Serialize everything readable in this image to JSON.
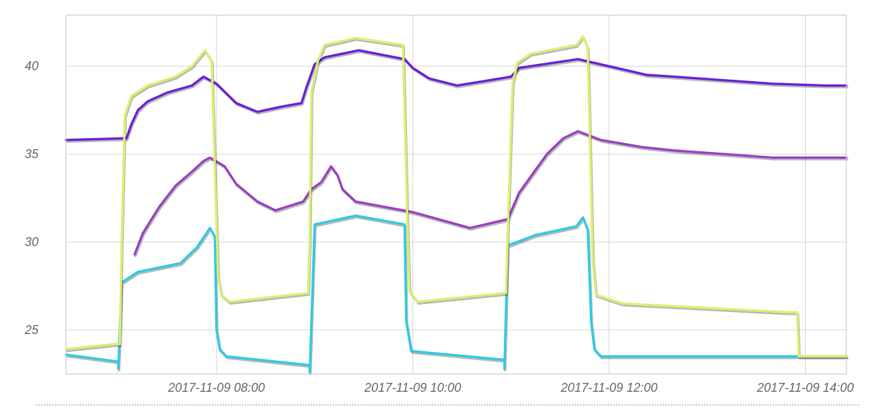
{
  "chart_data": {
    "type": "line",
    "title": "",
    "xlabel": "",
    "ylabel": "",
    "x_range": [
      "2017-11-09 06:28",
      "2017-11-09 14:25"
    ],
    "ylim": [
      22.5,
      42.9
    ],
    "y_ticks": [
      {
        "value": 25,
        "label": "25"
      },
      {
        "value": 30,
        "label": "30"
      },
      {
        "value": 35,
        "label": "35"
      },
      {
        "value": 40,
        "label": "40"
      }
    ],
    "x_ticks": [
      {
        "value": "2017-11-09 08:00",
        "label": "2017-11-09 08:00"
      },
      {
        "value": "2017-11-09 10:00",
        "label": "2017-11-09 10:00"
      },
      {
        "value": "2017-11-09 12:00",
        "label": "2017-11-09 12:00"
      },
      {
        "value": "2017-11-09 14:00",
        "label": "2017-11-09 14:00"
      }
    ],
    "grid": true,
    "legend": "none",
    "series": [
      {
        "color": "#6a1fd8",
        "points": [
          [
            "2017-11-09 06:28",
            35.8
          ],
          [
            "2017-11-09 07:05",
            35.9
          ],
          [
            "2017-11-09 07:08",
            36.7
          ],
          [
            "2017-11-09 07:12",
            37.5
          ],
          [
            "2017-11-09 07:18",
            38.0
          ],
          [
            "2017-11-09 07:30",
            38.5
          ],
          [
            "2017-11-09 07:45",
            38.9
          ],
          [
            "2017-11-09 07:52",
            39.4
          ],
          [
            "2017-11-09 08:00",
            39.0
          ],
          [
            "2017-11-09 08:12",
            37.9
          ],
          [
            "2017-11-09 08:25",
            37.4
          ],
          [
            "2017-11-09 08:40",
            37.7
          ],
          [
            "2017-11-09 08:52",
            37.9
          ],
          [
            "2017-11-09 08:55",
            38.8
          ],
          [
            "2017-11-09 09:00",
            40.1
          ],
          [
            "2017-11-09 09:06",
            40.5
          ],
          [
            "2017-11-09 09:27",
            40.9
          ],
          [
            "2017-11-09 09:55",
            40.4
          ],
          [
            "2017-11-09 10:00",
            39.9
          ],
          [
            "2017-11-09 10:10",
            39.3
          ],
          [
            "2017-11-09 10:27",
            38.9
          ],
          [
            "2017-11-09 10:47",
            39.2
          ],
          [
            "2017-11-09 11:00",
            39.4
          ],
          [
            "2017-11-09 11:05",
            39.9
          ],
          [
            "2017-11-09 11:41",
            40.4
          ],
          [
            "2017-11-09 11:55",
            40.1
          ],
          [
            "2017-11-09 12:23",
            39.5
          ],
          [
            "2017-11-09 12:40",
            39.4
          ],
          [
            "2017-11-09 13:10",
            39.2
          ],
          [
            "2017-11-09 13:40",
            39.0
          ],
          [
            "2017-11-09 14:12",
            38.9
          ],
          [
            "2017-11-09 14:25",
            38.9
          ]
        ]
      },
      {
        "color": "#9b3fc3",
        "points": [
          [
            "2017-11-09 07:10",
            29.3
          ],
          [
            "2017-11-09 07:15",
            30.5
          ],
          [
            "2017-11-09 07:25",
            32.0
          ],
          [
            "2017-11-09 07:35",
            33.2
          ],
          [
            "2017-11-09 07:45",
            34.0
          ],
          [
            "2017-11-09 07:52",
            34.6
          ],
          [
            "2017-11-09 07:56",
            34.8
          ],
          [
            "2017-11-09 08:05",
            34.3
          ],
          [
            "2017-11-09 08:12",
            33.3
          ],
          [
            "2017-11-09 08:25",
            32.3
          ],
          [
            "2017-11-09 08:36",
            31.8
          ],
          [
            "2017-11-09 08:53",
            32.3
          ],
          [
            "2017-11-09 08:58",
            33.0
          ],
          [
            "2017-11-09 09:04",
            33.4
          ],
          [
            "2017-11-09 09:10",
            34.3
          ],
          [
            "2017-11-09 09:14",
            33.8
          ],
          [
            "2017-11-09 09:17",
            33.0
          ],
          [
            "2017-11-09 09:25",
            32.3
          ],
          [
            "2017-11-09 10:00",
            31.7
          ],
          [
            "2017-11-09 10:35",
            30.8
          ],
          [
            "2017-11-09 10:58",
            31.3
          ],
          [
            "2017-11-09 11:05",
            32.8
          ],
          [
            "2017-11-09 11:22",
            35.0
          ],
          [
            "2017-11-09 11:32",
            35.9
          ],
          [
            "2017-11-09 11:41",
            36.3
          ],
          [
            "2017-11-09 11:55",
            35.8
          ],
          [
            "2017-11-09 12:20",
            35.4
          ],
          [
            "2017-11-09 12:40",
            35.2
          ],
          [
            "2017-11-09 13:10",
            35.0
          ],
          [
            "2017-11-09 13:40",
            34.8
          ],
          [
            "2017-11-09 14:25",
            34.8
          ]
        ]
      },
      {
        "color": "#2ecae6",
        "points": [
          [
            "2017-11-09 06:28",
            23.6
          ],
          [
            "2017-11-09 07:00",
            23.2
          ],
          [
            "2017-11-09 07:00",
            22.8
          ],
          [
            "2017-11-09 07:02",
            27.7
          ],
          [
            "2017-11-09 07:12",
            28.3
          ],
          [
            "2017-11-09 07:38",
            28.8
          ],
          [
            "2017-11-09 07:48",
            29.7
          ],
          [
            "2017-11-09 07:56",
            30.8
          ],
          [
            "2017-11-09 07:59",
            30.3
          ],
          [
            "2017-11-09 08:00",
            25.0
          ],
          [
            "2017-11-09 08:02",
            23.9
          ],
          [
            "2017-11-09 08:06",
            23.5
          ],
          [
            "2017-11-09 08:57",
            23.0
          ],
          [
            "2017-11-09 08:57",
            22.6
          ],
          [
            "2017-11-09 09:00",
            31.0
          ],
          [
            "2017-11-09 09:25",
            31.5
          ],
          [
            "2017-11-09 09:55",
            31.0
          ],
          [
            "2017-11-09 09:56",
            25.5
          ],
          [
            "2017-11-09 09:59",
            23.8
          ],
          [
            "2017-11-09 10:56",
            23.3
          ],
          [
            "2017-11-09 10:56",
            22.8
          ],
          [
            "2017-11-09 10:58",
            29.8
          ],
          [
            "2017-11-09 11:15",
            30.4
          ],
          [
            "2017-11-09 11:40",
            30.9
          ],
          [
            "2017-11-09 11:44",
            31.4
          ],
          [
            "2017-11-09 11:47",
            30.7
          ],
          [
            "2017-11-09 11:49",
            25.5
          ],
          [
            "2017-11-09 11:51",
            23.9
          ],
          [
            "2017-11-09 11:55",
            23.5
          ],
          [
            "2017-11-09 14:25",
            23.5
          ]
        ]
      },
      {
        "color": "#dcee6e",
        "points": [
          [
            "2017-11-09 06:28",
            23.9
          ],
          [
            "2017-11-09 06:58",
            24.2
          ],
          [
            "2017-11-09 07:01",
            24.2
          ],
          [
            "2017-11-09 07:02",
            30.0
          ],
          [
            "2017-11-09 07:04",
            37.2
          ],
          [
            "2017-11-09 07:08",
            38.3
          ],
          [
            "2017-11-09 07:18",
            38.9
          ],
          [
            "2017-11-09 07:35",
            39.4
          ],
          [
            "2017-11-09 07:45",
            40.0
          ],
          [
            "2017-11-09 07:53",
            40.9
          ],
          [
            "2017-11-09 07:57",
            40.3
          ],
          [
            "2017-11-09 08:01",
            28.0
          ],
          [
            "2017-11-09 08:03",
            27.0
          ],
          [
            "2017-11-09 08:08",
            26.6
          ],
          [
            "2017-11-09 08:56",
            27.1
          ],
          [
            "2017-11-09 08:57",
            30.0
          ],
          [
            "2017-11-09 08:58",
            38.5
          ],
          [
            "2017-11-09 09:02",
            40.3
          ],
          [
            "2017-11-09 09:06",
            41.2
          ],
          [
            "2017-11-09 09:25",
            41.6
          ],
          [
            "2017-11-09 09:54",
            41.2
          ],
          [
            "2017-11-09 09:57",
            30.0
          ],
          [
            "2017-11-09 09:58",
            27.2
          ],
          [
            "2017-11-09 10:03",
            26.6
          ],
          [
            "2017-11-09 10:57",
            27.1
          ],
          [
            "2017-11-09 10:58",
            30.5
          ],
          [
            "2017-11-09 11:01",
            39.0
          ],
          [
            "2017-11-09 11:04",
            40.2
          ],
          [
            "2017-11-09 11:12",
            40.7
          ],
          [
            "2017-11-09 11:40",
            41.2
          ],
          [
            "2017-11-09 11:44",
            41.7
          ],
          [
            "2017-11-09 11:47",
            41.0
          ],
          [
            "2017-11-09 11:50",
            29.0
          ],
          [
            "2017-11-09 11:52",
            27.0
          ],
          [
            "2017-11-09 12:08",
            26.5
          ],
          [
            "2017-11-09 13:50",
            26.0
          ],
          [
            "2017-11-09 13:55",
            26.0
          ],
          [
            "2017-11-09 13:56",
            23.5
          ],
          [
            "2017-11-09 14:25",
            23.5
          ]
        ]
      }
    ]
  }
}
